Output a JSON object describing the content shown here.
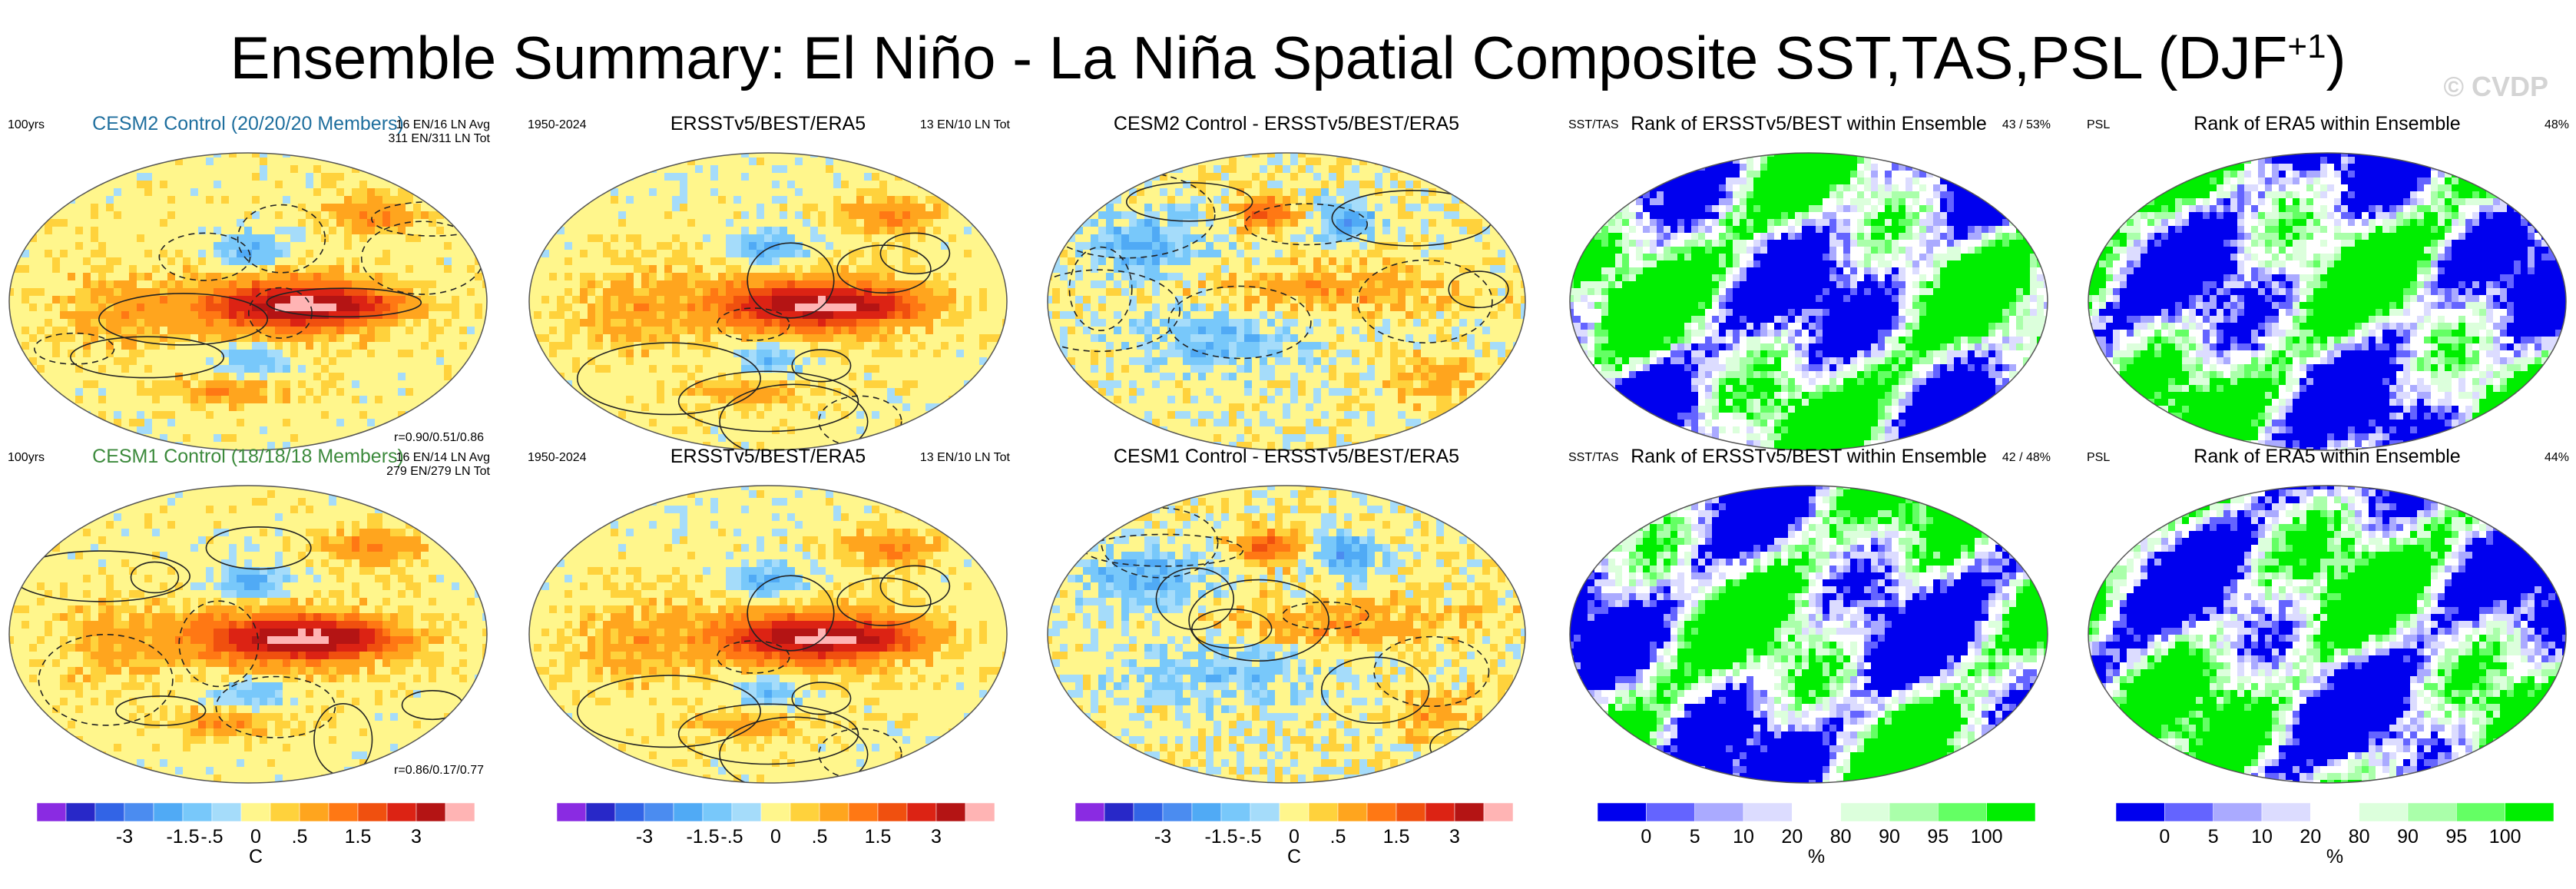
{
  "title": "Ensemble Summary: El Niño - La Niña Spatial Composite SST,TAS,PSL (DJF",
  "title_sup": "+1",
  "title_close": ")",
  "watermark": "© CVDP",
  "rows": [
    {
      "panels": [
        {
          "title": "CESM2 Control (20/20/20 Members)",
          "title_color": "#1f6f9e",
          "tl": "100yrs",
          "tr1": "16 EN/16 LN Avg",
          "tr2": "311 EN/311 LN Tot",
          "br": "r=0.90/0.51/0.86",
          "kind": "anom",
          "seed": 11
        },
        {
          "title": "ERSSTv5/BEST/ERA5",
          "title_color": "#000000",
          "tl": "1950-2024",
          "tr1": "13 EN/10 LN Tot",
          "tr2": "",
          "br": "",
          "kind": "anom",
          "seed": 23
        },
        {
          "title": "CESM2 Control - ERSSTv5/BEST/ERA5",
          "title_color": "#000000",
          "tl": "",
          "tr1": "",
          "tr2": "",
          "br": "",
          "kind": "diff",
          "seed": 37
        },
        {
          "title": "Rank of ERSSTv5/BEST within Ensemble",
          "title_color": "#000000",
          "tl": "SST/TAS",
          "tr1": "43 /  53%",
          "tr2": "",
          "br": "",
          "kind": "rank",
          "seed": 41
        },
        {
          "title": "Rank of ERA5 within Ensemble",
          "title_color": "#000000",
          "tl": "PSL",
          "tr1": "48%",
          "tr2": "",
          "br": "",
          "kind": "rank",
          "seed": 53
        }
      ]
    },
    {
      "panels": [
        {
          "title": "CESM1 Control (18/18/18 Members)",
          "title_color": "#3c8a3c",
          "tl": "100yrs",
          "tr1": "16 EN/14 LN Avg",
          "tr2": "279 EN/279 LN Tot",
          "br": "r=0.86/0.17/0.77",
          "kind": "anom",
          "seed": 61
        },
        {
          "title": "ERSSTv5/BEST/ERA5",
          "title_color": "#000000",
          "tl": "1950-2024",
          "tr1": "13 EN/10 LN Tot",
          "tr2": "",
          "br": "",
          "kind": "anom",
          "seed": 23
        },
        {
          "title": "CESM1 Control - ERSSTv5/BEST/ERA5",
          "title_color": "#000000",
          "tl": "",
          "tr1": "",
          "tr2": "",
          "br": "",
          "kind": "diff",
          "seed": 73
        },
        {
          "title": "Rank of ERSSTv5/BEST within Ensemble",
          "title_color": "#000000",
          "tl": "SST/TAS",
          "tr1": "42 /  48%",
          "tr2": "",
          "br": "",
          "kind": "rank",
          "seed": 83
        },
        {
          "title": "Rank of ERA5 within Ensemble",
          "title_color": "#000000",
          "tl": "PSL",
          "tr1": "44%",
          "tr2": "",
          "br": "",
          "kind": "rank",
          "seed": 97
        }
      ]
    }
  ],
  "colorbars": [
    {
      "kind": "anom",
      "labels": [
        "-3",
        "-1.5",
        "-.5",
        "0",
        ".5",
        "1.5",
        "3"
      ],
      "units": "C"
    },
    {
      "kind": "anom",
      "labels": [
        "-3",
        "-1.5",
        "-.5",
        "0",
        ".5",
        "1.5",
        "3"
      ],
      "units": ""
    },
    {
      "kind": "anom",
      "labels": [
        "-3",
        "-1.5",
        "-.5",
        "0",
        ".5",
        "1.5",
        "3"
      ],
      "units": "C"
    },
    {
      "kind": "rank",
      "labels": [
        "0",
        "5",
        "10",
        "20",
        "80",
        "90",
        "95",
        "100"
      ],
      "units": "%"
    },
    {
      "kind": "rank",
      "labels": [
        "0",
        "5",
        "10",
        "20",
        "80",
        "90",
        "95",
        "100"
      ],
      "units": "%"
    }
  ],
  "chart_data": {
    "type": "heatmap",
    "title": "Ensemble Summary: El Niño - La Niña Spatial Composite SST,TAS,PSL (DJF+1)",
    "anomaly_colorbar": {
      "units": "C",
      "tick_labels": [
        "-3",
        "-1.5",
        "-.5",
        "0",
        ".5",
        "1.5",
        "3"
      ],
      "colors": [
        "#8a2be2",
        "#2828c8",
        "#3264e6",
        "#4b8cf0",
        "#50aaf5",
        "#78c8fa",
        "#a5dcfa",
        "#fff68c",
        "#ffd23c",
        "#ffa51e",
        "#ff7814",
        "#f0500f",
        "#dc2314",
        "#b41414",
        "#ffb4b4"
      ]
    },
    "rank_colorbar": {
      "units": "%",
      "tick_labels": [
        "0",
        "5",
        "10",
        "20",
        "80",
        "90",
        "95",
        "100"
      ],
      "colors": [
        "#0000ee",
        "#6464ff",
        "#aaaaff",
        "#dcdcff",
        "#ffffff",
        "#dcffdc",
        "#aaffaa",
        "#64ff64",
        "#00ee00"
      ]
    },
    "panels": [
      {
        "row": 1,
        "title": "CESM2 Control (20/20/20 Members)",
        "period": "100yrs",
        "events": "16 EN/16 LN Avg; 311 EN/311 LN Tot",
        "pattern_correlation": [
          0.9,
          0.51,
          0.86
        ]
      },
      {
        "row": 1,
        "title": "ERSSTv5/BEST/ERA5",
        "period": "1950-2024",
        "events": "13 EN/10 LN Tot"
      },
      {
        "row": 1,
        "title": "CESM2 Control - ERSSTv5/BEST/ERA5"
      },
      {
        "row": 1,
        "title": "Rank of ERSSTv5/BEST within Ensemble",
        "variables": "SST/TAS",
        "rank_summary": "43 /  53%"
      },
      {
        "row": 1,
        "title": "Rank of ERA5 within Ensemble",
        "variables": "PSL",
        "rank_summary": "48%"
      },
      {
        "row": 2,
        "title": "CESM1 Control (18/18/18 Members)",
        "period": "100yrs",
        "events": "16 EN/14 LN Avg; 279 EN/279 LN Tot",
        "pattern_correlation": [
          0.86,
          0.17,
          0.77
        ]
      },
      {
        "row": 2,
        "title": "ERSSTv5/BEST/ERA5",
        "period": "1950-2024",
        "events": "13 EN/10 LN Tot"
      },
      {
        "row": 2,
        "title": "CESM1 Control - ERSSTv5/BEST/ERA5"
      },
      {
        "row": 2,
        "title": "Rank of ERSSTv5/BEST within Ensemble",
        "variables": "SST/TAS",
        "rank_summary": "42 /  48%"
      },
      {
        "row": 2,
        "title": "Rank of ERA5 within Ensemble",
        "variables": "PSL",
        "rank_summary": "44%"
      }
    ]
  }
}
